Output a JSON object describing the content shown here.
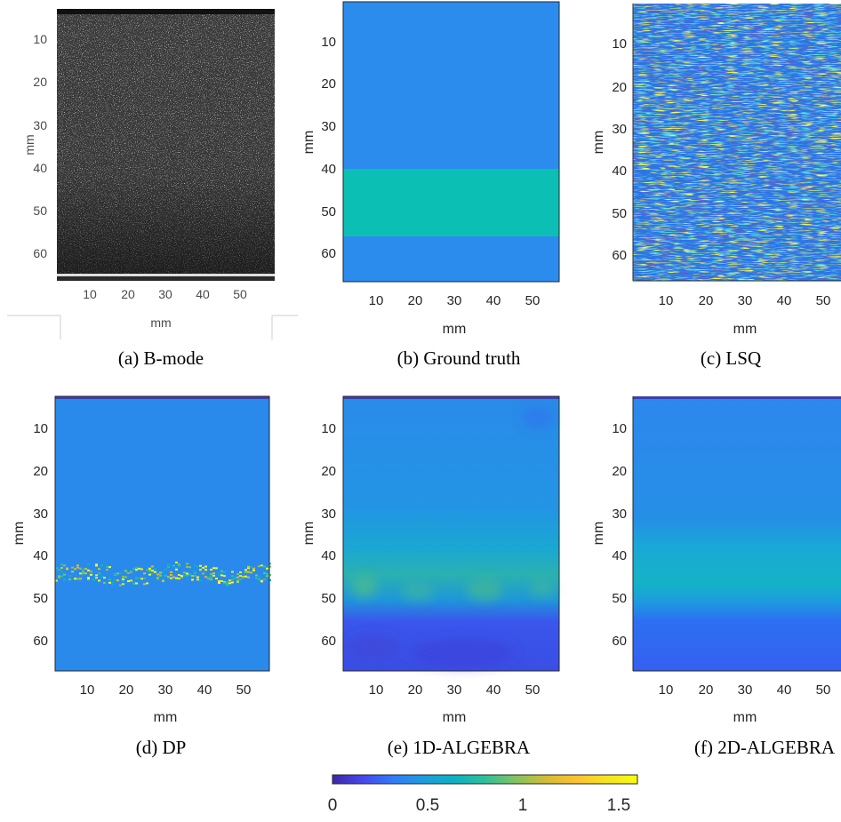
{
  "figure": {
    "panels": [
      {
        "id": "a",
        "caption": "(a) B-mode",
        "kind": "bmode",
        "xlabel": "mm",
        "ylabel": "mm",
        "xticks": [
          "10",
          "20",
          "30",
          "40",
          "50"
        ],
        "yticks": [
          "10",
          "20",
          "30",
          "40",
          "50",
          "60"
        ]
      },
      {
        "id": "b",
        "caption": "(b) Ground truth",
        "kind": "ground_truth",
        "xlabel": "mm",
        "ylabel": "mm",
        "xticks": [
          "10",
          "20",
          "30",
          "40",
          "50"
        ],
        "yticks": [
          "10",
          "20",
          "30",
          "40",
          "50",
          "60"
        ]
      },
      {
        "id": "c",
        "caption": "(c) LSQ",
        "kind": "lsq",
        "xlabel": "mm",
        "ylabel": "mm",
        "xticks": [
          "10",
          "20",
          "30",
          "40",
          "50"
        ],
        "yticks": [
          "10",
          "20",
          "30",
          "40",
          "50",
          "60"
        ]
      },
      {
        "id": "d",
        "caption": "(d) DP",
        "kind": "dp",
        "xlabel": "mm",
        "ylabel": "mm",
        "xticks": [
          "10",
          "20",
          "30",
          "40",
          "50"
        ],
        "yticks": [
          "10",
          "20",
          "30",
          "40",
          "50",
          "60"
        ]
      },
      {
        "id": "e",
        "caption": "(e) 1D-ALGEBRA",
        "kind": "algebra1d",
        "xlabel": "mm",
        "ylabel": "mm",
        "xticks": [
          "10",
          "20",
          "30",
          "40",
          "50"
        ],
        "yticks": [
          "10",
          "20",
          "30",
          "40",
          "50",
          "60"
        ]
      },
      {
        "id": "f",
        "caption": "(f) 2D-ALGEBRA",
        "kind": "algebra2d",
        "xlabel": "mm",
        "ylabel": "mm",
        "xticks": [
          "10",
          "20",
          "30",
          "40",
          "50"
        ],
        "yticks": [
          "10",
          "20",
          "30",
          "40",
          "50",
          "60"
        ]
      }
    ],
    "colorbar": {
      "colormap": "parula",
      "range": [
        0,
        1.6
      ],
      "ticks": [
        "0",
        "0.5",
        "1",
        "1.5"
      ],
      "stops": [
        "#3e26a8",
        "#4748ee",
        "#2f7cf8",
        "#1c9ddd",
        "#0cb2c1",
        "#2ebf9c",
        "#81c45d",
        "#d4bb35",
        "#fdc231",
        "#f5e41f",
        "#f9fb0e"
      ]
    },
    "ground_truth": {
      "background_value": 0.55,
      "inclusion_value": 0.95,
      "inclusion_depth_mm": [
        40,
        55.5
      ]
    }
  }
}
